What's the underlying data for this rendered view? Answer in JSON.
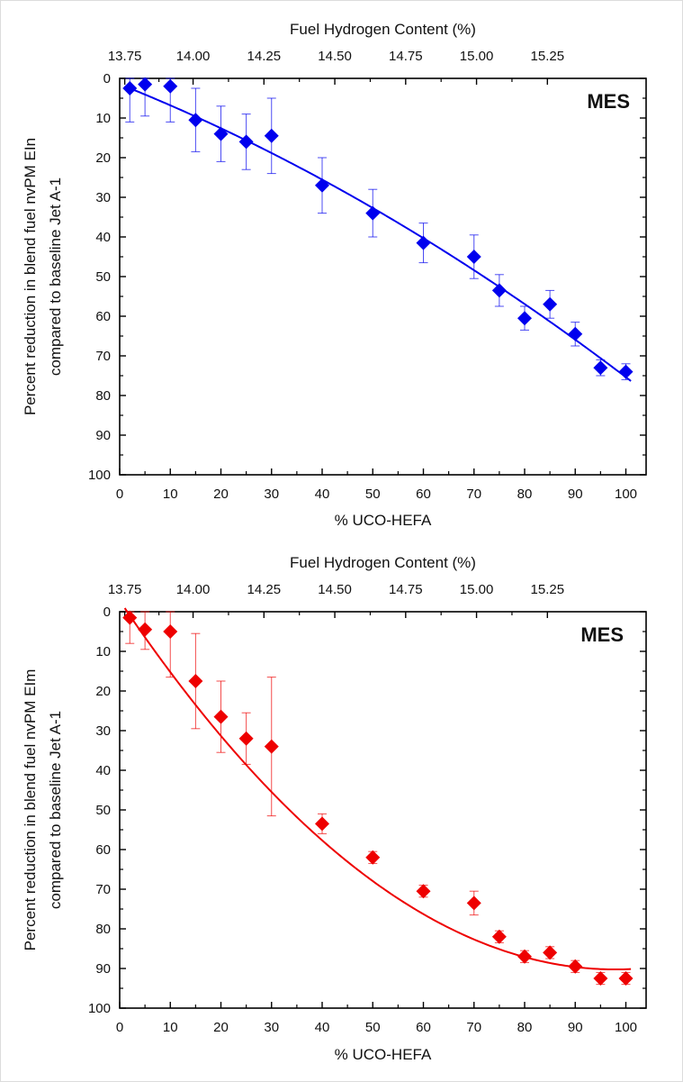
{
  "chart_data": [
    {
      "type": "scatter",
      "annotation": "MES",
      "xlabel": "% UCO-HEFA",
      "x2label": "Fuel Hydrogen Content (%)",
      "ylabel_line1": "Percent reduction in blend fuel nvPM EIn",
      "ylabel_line2": "compared to baseline Jet A-1",
      "xlim": [
        0,
        104
      ],
      "ylim": [
        100,
        0
      ],
      "y_inverted": true,
      "grid": false,
      "x_ticks": [
        "0",
        "10",
        "20",
        "30",
        "40",
        "50",
        "60",
        "70",
        "80",
        "90",
        "100"
      ],
      "y_ticks": [
        "0",
        "10",
        "20",
        "30",
        "40",
        "50",
        "60",
        "70",
        "80",
        "90",
        "100"
      ],
      "top_ticks": [
        {
          "label": "13.75",
          "x": 1.0
        },
        {
          "label": "14.00",
          "x": 14.5
        },
        {
          "label": "14.25",
          "x": 28.5
        },
        {
          "label": "14.50",
          "x": 42.5
        },
        {
          "label": "14.75",
          "x": 56.5
        },
        {
          "label": "15.00",
          "x": 70.5
        },
        {
          "label": "15.25",
          "x": 84.5
        }
      ],
      "color": "#0000ee",
      "series": [
        {
          "x": [
            2,
            5,
            10,
            15,
            20,
            25,
            30,
            40,
            50,
            60,
            70,
            75,
            80,
            85,
            90,
            95,
            100
          ],
          "y": [
            2.5,
            1.5,
            2.0,
            10.5,
            14.0,
            16.0,
            14.5,
            27.0,
            34.0,
            41.5,
            45.0,
            53.5,
            60.5,
            57.0,
            64.5,
            73.0,
            74.0
          ],
          "err": [
            8.5,
            8.0,
            9.0,
            8.0,
            7.0,
            7.0,
            9.5,
            7.0,
            6.0,
            5.0,
            5.5,
            4.0,
            3.0,
            3.5,
            3.0,
            2.0,
            2.0
          ]
        }
      ],
      "fit": {
        "x_start": 1,
        "x_end": 101,
        "coef": [
          1.47,
          0.51,
          0.00229
        ]
      }
    },
    {
      "type": "scatter",
      "annotation": "MES",
      "xlabel": "% UCO-HEFA",
      "x2label": "Fuel Hydrogen Content (%)",
      "ylabel_line1": "Percent reduction in blend fuel nvPM EIm",
      "ylabel_line2": "compared to baseline Jet A-1",
      "xlim": [
        0,
        104
      ],
      "ylim": [
        100,
        0
      ],
      "y_inverted": true,
      "grid": false,
      "x_ticks": [
        "0",
        "10",
        "20",
        "30",
        "40",
        "50",
        "60",
        "70",
        "80",
        "90",
        "100"
      ],
      "y_ticks": [
        "0",
        "10",
        "20",
        "30",
        "40",
        "50",
        "60",
        "70",
        "80",
        "90",
        "100"
      ],
      "top_ticks": [
        {
          "label": "13.75",
          "x": 1.0
        },
        {
          "label": "14.00",
          "x": 14.5
        },
        {
          "label": "14.25",
          "x": 28.5
        },
        {
          "label": "14.50",
          "x": 42.5
        },
        {
          "label": "14.75",
          "x": 56.5
        },
        {
          "label": "15.00",
          "x": 70.5
        },
        {
          "label": "15.25",
          "x": 84.5
        }
      ],
      "color": "#ee0000",
      "series": [
        {
          "x": [
            2,
            5,
            10,
            15,
            20,
            25,
            30,
            40,
            50,
            60,
            70,
            75,
            80,
            85,
            90,
            95,
            100
          ],
          "y": [
            1.5,
            4.5,
            5.0,
            17.5,
            26.5,
            32.0,
            34.0,
            53.5,
            62.0,
            70.5,
            73.5,
            82.0,
            87.0,
            86.0,
            89.5,
            92.5,
            92.5
          ],
          "err": [
            6.5,
            5.0,
            11.5,
            12.0,
            9.0,
            6.5,
            17.5,
            2.5,
            1.5,
            1.5,
            3.0,
            1.5,
            1.5,
            1.5,
            1.5,
            1.5,
            1.5
          ]
        }
      ],
      "fit": {
        "x_start": 1,
        "x_end": 101,
        "coef": [
          -2.8,
          1.9,
          -0.0097
        ]
      }
    }
  ]
}
